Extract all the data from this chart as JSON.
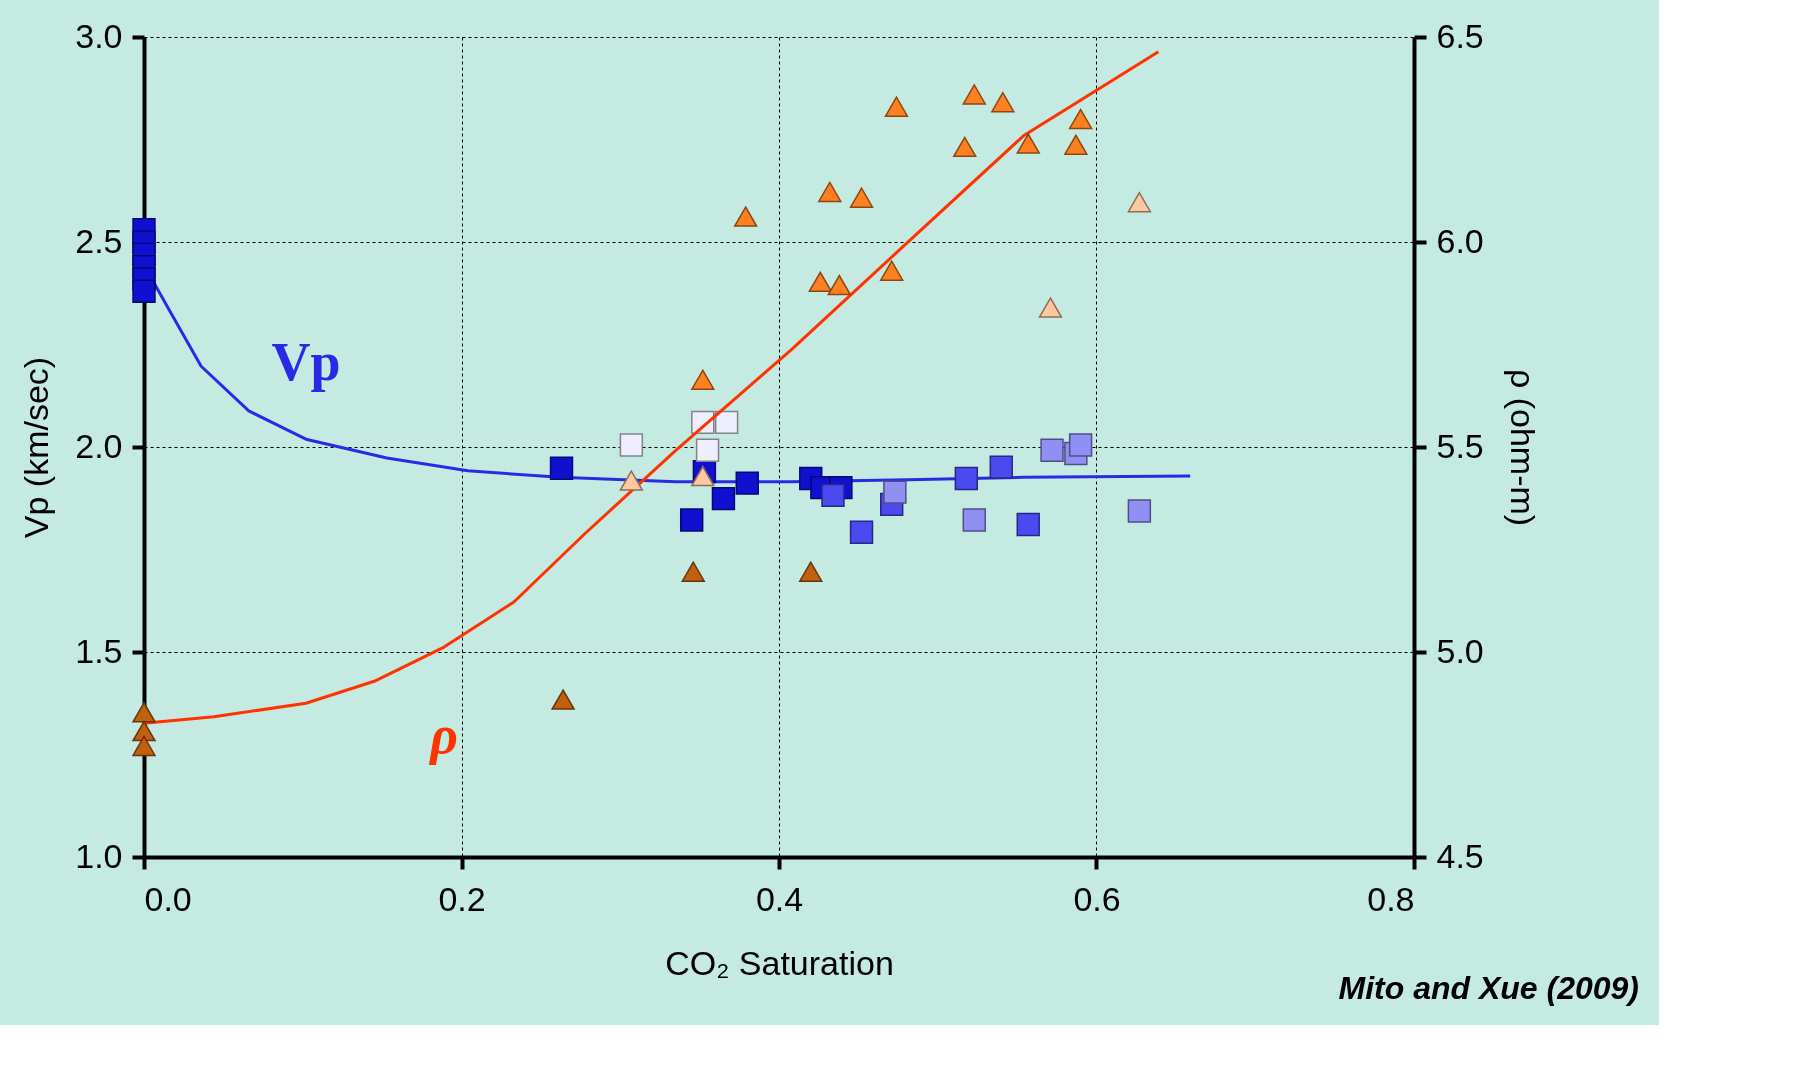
{
  "chart_data": {
    "type": "scatter",
    "xlabel": "CO₂ Saturation",
    "ylabel": "Vp (km/sec)",
    "y2label": "ρ (ohm-m)",
    "xlim": [
      0,
      0.8
    ],
    "xticks": [
      {
        "value": 0,
        "label": "0.0"
      },
      0.2,
      0.4,
      0.6,
      0.8
    ],
    "ylim": [
      1,
      3
    ],
    "yticks": [
      {
        "value": 1,
        "label": "1.0"
      },
      1.5,
      {
        "value": 2,
        "label": "2.0"
      },
      2.5,
      {
        "value": 3,
        "label": "3.0"
      }
    ],
    "y2lim": [
      4.5,
      6.5
    ],
    "y2ticks": [
      4.5,
      {
        "value": 5,
        "label": "5.0"
      },
      5.5,
      {
        "value": 6,
        "label": "6.0"
      },
      6.5
    ],
    "grid": true,
    "legend": false,
    "annotations": [
      "Mito and Xue (2009)"
    ],
    "series": [
      {
        "type": "line",
        "name": "Vp",
        "marker": "none",
        "line_style": "solid",
        "color": "#2a2ae6",
        "x": [
          0,
          0.015,
          0.036,
          0.066,
          0.102,
          0.153,
          0.204,
          0.262,
          0.335,
          0.408,
          0.481,
          0.554,
          0.659
        ],
        "values": [
          2.444,
          2.34,
          2.197,
          2.088,
          2.019,
          1.973,
          1.942,
          1.926,
          1.915,
          1.915,
          1.92,
          1.926,
          1.929
        ]
      },
      {
        "type": "line",
        "name": "ρ",
        "marker": "none",
        "line_style": "solid",
        "axis": "y2",
        "color": "#ff3300",
        "x": [
          0,
          0.044,
          0.102,
          0.146,
          0.189,
          0.233,
          0.277,
          0.335,
          0.408,
          0.481,
          0.554,
          0.639
        ],
        "values": [
          4.826,
          4.842,
          4.875,
          4.93,
          5.012,
          5.122,
          5.286,
          5.492,
          5.738,
          5.999,
          6.259,
          6.464
        ]
      },
      {
        "marker": "square",
        "color": "#1010d0",
        "x": [
          0,
          0,
          0,
          0,
          0,
          0,
          0.263,
          0.345,
          0.353,
          0.365,
          0.38,
          0.42,
          0.427,
          0.439
        ],
        "values": [
          2.53,
          2.5,
          2.47,
          2.44,
          2.41,
          2.38,
          1.948,
          1.822,
          1.94,
          1.874,
          1.912,
          1.923,
          1.901,
          1.901
        ]
      },
      {
        "marker": "square",
        "color": "#4a4af0",
        "x": [
          0.434,
          0.452,
          0.471,
          0.518,
          0.54,
          0.557
        ],
        "values": [
          1.882,
          1.792,
          1.86,
          1.923,
          1.951,
          1.811
        ]
      },
      {
        "marker": "square",
        "color": "#9090f4",
        "x": [
          0.473,
          0.523,
          0.572,
          0.587,
          0.59,
          0.627
        ],
        "values": [
          1.89,
          1.822,
          1.992,
          1.984,
          2.005,
          1.844
        ]
      },
      {
        "marker": "square",
        "color": "#eeeeff",
        "x": [
          0.307,
          0.352,
          0.367,
          0.355
        ],
        "values": [
          2.005,
          2.06,
          2.06,
          1.992
        ]
      },
      {
        "marker": "triangle",
        "axis": "y2",
        "color": "#c06010",
        "x": [
          0,
          0,
          0,
          0.264,
          0.346,
          0.42
        ],
        "values": [
          4.853,
          4.807,
          4.771,
          4.884,
          5.196,
          5.196
        ]
      },
      {
        "marker": "triangle",
        "axis": "y2",
        "color": "#ff8020",
        "x": [
          0.352,
          0.379,
          0.426,
          0.438,
          0.432,
          0.452,
          0.471,
          0.474,
          0.517,
          0.523,
          0.541,
          0.557,
          0.587,
          0.59
        ],
        "values": [
          5.664,
          6.062,
          5.903,
          5.895,
          6.122,
          6.108,
          5.93,
          6.33,
          6.232,
          6.36,
          6.341,
          6.24,
          6.237,
          6.3
        ]
      },
      {
        "marker": "triangle",
        "axis": "y2",
        "color": "#ffc8a0",
        "x": [
          0.307,
          0.571,
          0.627,
          0.352
        ],
        "values": [
          5.418,
          5.84,
          6.097,
          5.429
        ]
      }
    ]
  }
}
